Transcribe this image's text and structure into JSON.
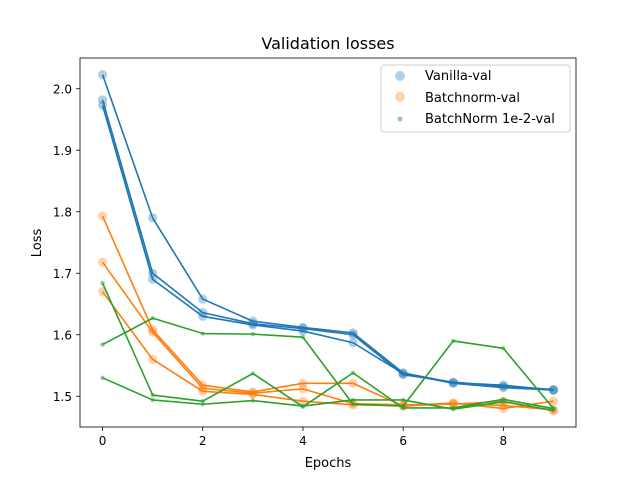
{
  "chart_data": {
    "type": "line",
    "title": "Validation losses",
    "xlabel": "Epochs",
    "ylabel": "Loss",
    "xlim": [
      -0.45,
      9.45
    ],
    "ylim": [
      1.45,
      2.05
    ],
    "xticks": [
      0,
      2,
      4,
      6,
      8
    ],
    "yticks": [
      1.5,
      1.6,
      1.7,
      1.8,
      1.9,
      2.0
    ],
    "ytick_labels": [
      "1.5",
      "1.6",
      "1.7",
      "1.8",
      "1.9",
      "2.0"
    ],
    "grid": false,
    "legend_placement": "upper-right",
    "x": [
      0,
      1,
      2,
      3,
      4,
      5,
      6,
      7,
      8,
      9
    ],
    "series": [
      {
        "name": "Vanilla-val",
        "color": "#1f77b4",
        "marker": "large-circle",
        "runs": [
          [
            2.023,
            1.79,
            1.658,
            1.622,
            1.612,
            1.603,
            1.538,
            1.522,
            1.518,
            1.51
          ],
          [
            1.982,
            1.7,
            1.636,
            1.618,
            1.61,
            1.6,
            1.535,
            1.523,
            1.516,
            1.511
          ],
          [
            1.973,
            1.69,
            1.63,
            1.616,
            1.606,
            1.587,
            1.537,
            1.521,
            1.514,
            1.51
          ]
        ]
      },
      {
        "name": "Batchnorm-val",
        "color": "#ff7f0e",
        "marker": "large-circle",
        "runs": [
          [
            1.793,
            1.608,
            1.518,
            1.507,
            1.521,
            1.521,
            1.484,
            1.488,
            1.485,
            1.478
          ],
          [
            1.718,
            1.604,
            1.513,
            1.505,
            1.512,
            1.488,
            1.486,
            1.487,
            1.492,
            1.476
          ],
          [
            1.67,
            1.56,
            1.508,
            1.503,
            1.492,
            1.486,
            1.485,
            1.489,
            1.48,
            1.492
          ]
        ]
      },
      {
        "name": "BatchNorm 1e-2-val",
        "color": "#2ca02c",
        "marker": "small-dot",
        "runs": [
          [
            1.584,
            1.627,
            1.602,
            1.601,
            1.596,
            1.487,
            1.484,
            1.59,
            1.578,
            1.48
          ],
          [
            1.684,
            1.502,
            1.492,
            1.537,
            1.483,
            1.538,
            1.481,
            1.481,
            1.495,
            1.48
          ],
          [
            1.53,
            1.494,
            1.487,
            1.493,
            1.484,
            1.494,
            1.494,
            1.479,
            1.491,
            1.477
          ]
        ]
      }
    ]
  }
}
